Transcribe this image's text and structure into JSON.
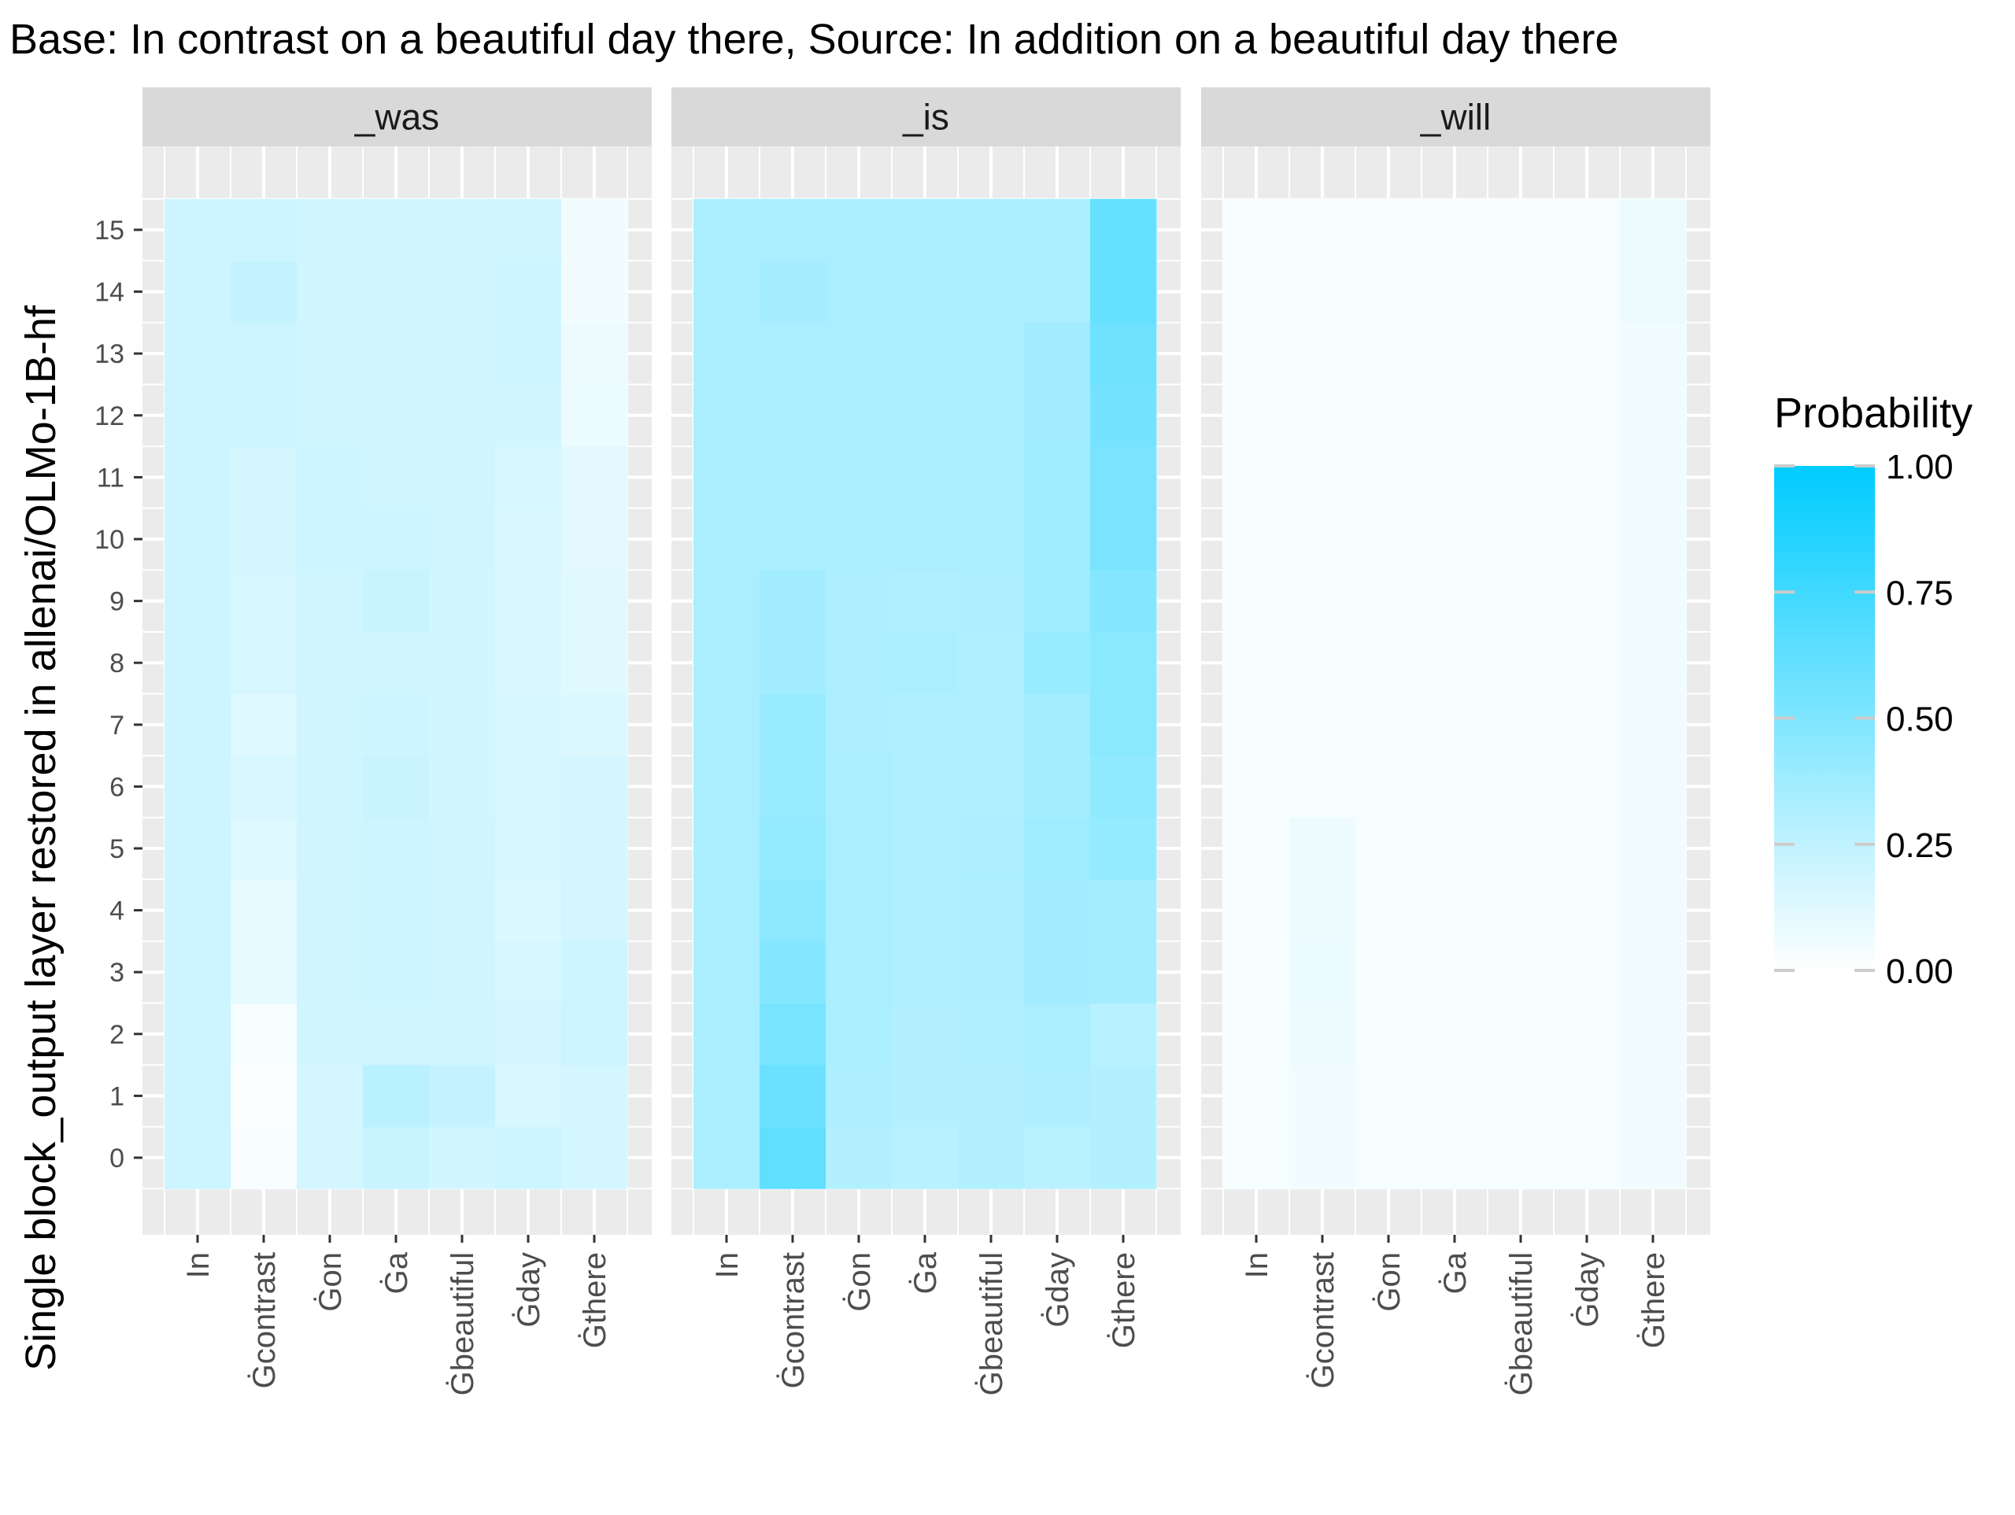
{
  "chart_data": {
    "type": "heatmap",
    "title": "Base: In contrast on a beautiful day there, Source: In addition on a beautiful day there",
    "ylabel": "Single block_output layer restored in allenai/OLMo-1B-hf",
    "xlabel": "",
    "x_tokens": [
      "In",
      "Ġcontrast",
      "Ġon",
      "Ġa",
      "Ġbeautiful",
      "Ġday",
      "Ġthere"
    ],
    "y_layers": [
      "0",
      "1",
      "2",
      "3",
      "4",
      "5",
      "6",
      "7",
      "8",
      "9",
      "10",
      "11",
      "12",
      "13",
      "14",
      "15"
    ],
    "facets": [
      {
        "name": "_was",
        "values": [
          [
            0.2,
            0.03,
            0.17,
            0.22,
            0.18,
            0.2,
            0.17
          ],
          [
            0.2,
            0.02,
            0.17,
            0.27,
            0.23,
            0.15,
            0.17
          ],
          [
            0.2,
            0.04,
            0.19,
            0.19,
            0.19,
            0.17,
            0.2
          ],
          [
            0.2,
            0.1,
            0.19,
            0.2,
            0.19,
            0.16,
            0.2
          ],
          [
            0.2,
            0.1,
            0.19,
            0.2,
            0.19,
            0.14,
            0.17
          ],
          [
            0.2,
            0.13,
            0.19,
            0.2,
            0.19,
            0.16,
            0.17
          ],
          [
            0.2,
            0.15,
            0.19,
            0.21,
            0.18,
            0.16,
            0.17
          ],
          [
            0.2,
            0.13,
            0.19,
            0.2,
            0.18,
            0.16,
            0.14
          ],
          [
            0.2,
            0.16,
            0.19,
            0.19,
            0.18,
            0.15,
            0.12
          ],
          [
            0.2,
            0.16,
            0.19,
            0.22,
            0.18,
            0.15,
            0.12
          ],
          [
            0.2,
            0.17,
            0.2,
            0.2,
            0.19,
            0.15,
            0.11
          ],
          [
            0.2,
            0.17,
            0.2,
            0.19,
            0.19,
            0.16,
            0.11
          ],
          [
            0.2,
            0.2,
            0.19,
            0.19,
            0.18,
            0.18,
            0.08
          ],
          [
            0.2,
            0.2,
            0.19,
            0.19,
            0.18,
            0.2,
            0.07
          ],
          [
            0.2,
            0.23,
            0.19,
            0.19,
            0.19,
            0.2,
            0.05
          ],
          [
            0.2,
            0.2,
            0.19,
            0.19,
            0.19,
            0.19,
            0.05
          ]
        ]
      },
      {
        "name": "_is",
        "values": [
          [
            0.33,
            0.62,
            0.3,
            0.28,
            0.3,
            0.27,
            0.3
          ],
          [
            0.33,
            0.58,
            0.32,
            0.3,
            0.3,
            0.32,
            0.3
          ],
          [
            0.33,
            0.53,
            0.33,
            0.3,
            0.31,
            0.33,
            0.28
          ],
          [
            0.33,
            0.48,
            0.33,
            0.31,
            0.32,
            0.37,
            0.36
          ],
          [
            0.33,
            0.45,
            0.33,
            0.31,
            0.32,
            0.37,
            0.36
          ],
          [
            0.33,
            0.42,
            0.33,
            0.31,
            0.32,
            0.38,
            0.42
          ],
          [
            0.33,
            0.4,
            0.33,
            0.31,
            0.31,
            0.36,
            0.44
          ],
          [
            0.33,
            0.4,
            0.32,
            0.31,
            0.31,
            0.36,
            0.46
          ],
          [
            0.33,
            0.37,
            0.32,
            0.33,
            0.31,
            0.4,
            0.46
          ],
          [
            0.33,
            0.37,
            0.32,
            0.31,
            0.32,
            0.38,
            0.48
          ],
          [
            0.33,
            0.33,
            0.33,
            0.33,
            0.33,
            0.38,
            0.52
          ],
          [
            0.33,
            0.33,
            0.33,
            0.33,
            0.33,
            0.38,
            0.52
          ],
          [
            0.33,
            0.33,
            0.33,
            0.33,
            0.33,
            0.37,
            0.54
          ],
          [
            0.33,
            0.33,
            0.33,
            0.33,
            0.33,
            0.37,
            0.57
          ],
          [
            0.33,
            0.35,
            0.33,
            0.33,
            0.33,
            0.33,
            0.6
          ],
          [
            0.33,
            0.33,
            0.33,
            0.33,
            0.33,
            0.33,
            0.6
          ]
        ]
      },
      {
        "name": "_will",
        "values": [
          [
            0.04,
            0.05,
            0.04,
            0.04,
            0.04,
            0.04,
            0.05
          ],
          [
            0.04,
            0.05,
            0.04,
            0.04,
            0.04,
            0.04,
            0.05
          ],
          [
            0.04,
            0.07,
            0.04,
            0.04,
            0.04,
            0.04,
            0.05
          ],
          [
            0.04,
            0.08,
            0.04,
            0.04,
            0.04,
            0.04,
            0.05
          ],
          [
            0.04,
            0.07,
            0.04,
            0.04,
            0.04,
            0.04,
            0.05
          ],
          [
            0.04,
            0.07,
            0.04,
            0.04,
            0.04,
            0.04,
            0.05
          ],
          [
            0.04,
            0.04,
            0.04,
            0.04,
            0.04,
            0.04,
            0.05
          ],
          [
            0.04,
            0.04,
            0.04,
            0.04,
            0.04,
            0.04,
            0.05
          ],
          [
            0.04,
            0.04,
            0.04,
            0.04,
            0.04,
            0.04,
            0.06
          ],
          [
            0.04,
            0.04,
            0.04,
            0.04,
            0.04,
            0.04,
            0.06
          ],
          [
            0.04,
            0.04,
            0.04,
            0.04,
            0.04,
            0.04,
            0.06
          ],
          [
            0.04,
            0.04,
            0.04,
            0.04,
            0.04,
            0.04,
            0.06
          ],
          [
            0.04,
            0.04,
            0.04,
            0.04,
            0.04,
            0.04,
            0.06
          ],
          [
            0.04,
            0.04,
            0.04,
            0.04,
            0.04,
            0.04,
            0.06
          ],
          [
            0.04,
            0.04,
            0.04,
            0.04,
            0.04,
            0.04,
            0.07
          ],
          [
            0.04,
            0.04,
            0.04,
            0.04,
            0.04,
            0.04,
            0.07
          ]
        ]
      }
    ],
    "legend": {
      "title": "Probability",
      "position": "right",
      "breaks": [
        0.0,
        0.25,
        0.5,
        0.75,
        1.0
      ],
      "labels": [
        "0.00",
        "0.25",
        "0.50",
        "0.75",
        "1.00"
      ],
      "range": [
        0,
        1
      ],
      "color_low": "#ffffff",
      "color_high": "#00ccff"
    },
    "colors": {
      "panel_background": "#ebebeb",
      "strip_background": "#d9d9d9",
      "grid": "#ffffff"
    }
  }
}
